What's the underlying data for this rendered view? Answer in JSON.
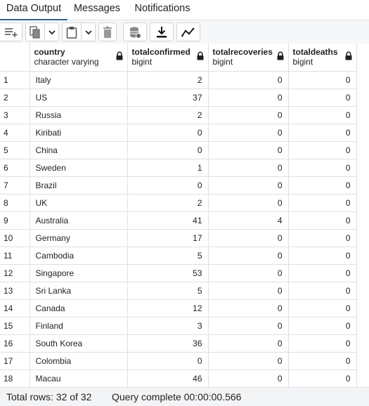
{
  "tabs": [
    {
      "label": "Data Output",
      "active": true
    },
    {
      "label": "Messages",
      "active": false
    },
    {
      "label": "Notifications",
      "active": false
    }
  ],
  "toolbar": {
    "buttons": [
      {
        "icon": "add-row-icon"
      },
      {
        "icon": "copy-icon"
      },
      {
        "icon": "chevron-down-icon"
      },
      {
        "icon": "paste-icon"
      },
      {
        "icon": "chevron-down-icon"
      },
      {
        "icon": "delete-icon"
      },
      {
        "icon": "save-data-icon"
      },
      {
        "icon": "download-icon"
      },
      {
        "icon": "graph-visualiser-icon"
      }
    ]
  },
  "grid": {
    "columns": [
      {
        "name": "country",
        "type": "character varying",
        "align": "left"
      },
      {
        "name": "totalconfirmed",
        "type": "bigint",
        "align": "right"
      },
      {
        "name": "totalrecoveries",
        "type": "bigint",
        "align": "right"
      },
      {
        "name": "totaldeaths",
        "type": "bigint",
        "align": "right"
      }
    ],
    "rows": [
      [
        "1",
        "Italy",
        "2",
        "0",
        "0"
      ],
      [
        "2",
        "US",
        "37",
        "0",
        "0"
      ],
      [
        "3",
        "Russia",
        "2",
        "0",
        "0"
      ],
      [
        "4",
        "Kiribati",
        "0",
        "0",
        "0"
      ],
      [
        "5",
        "China",
        "0",
        "0",
        "0"
      ],
      [
        "6",
        "Sweden",
        "1",
        "0",
        "0"
      ],
      [
        "7",
        "Brazil",
        "0",
        "0",
        "0"
      ],
      [
        "8",
        "UK",
        "2",
        "0",
        "0"
      ],
      [
        "9",
        "Australia",
        "41",
        "4",
        "0"
      ],
      [
        "10",
        "Germany",
        "17",
        "0",
        "0"
      ],
      [
        "11",
        "Cambodia",
        "5",
        "0",
        "0"
      ],
      [
        "12",
        "Singapore",
        "53",
        "0",
        "0"
      ],
      [
        "13",
        "Sri Lanka",
        "5",
        "0",
        "0"
      ],
      [
        "14",
        "Canada",
        "12",
        "0",
        "0"
      ],
      [
        "15",
        "Finland",
        "3",
        "0",
        "0"
      ],
      [
        "16",
        "South Korea",
        "36",
        "0",
        "0"
      ],
      [
        "17",
        "Colombia",
        "0",
        "0",
        "0"
      ],
      [
        "18",
        "Macau",
        "46",
        "0",
        "0"
      ]
    ]
  },
  "status": {
    "total_rows": "Total rows: 32 of 32",
    "query": "Query complete 00:00:00.566"
  },
  "colors": {
    "active_tab_underline": "#326690",
    "grid_border": "#dde0e6",
    "toolbar_bg": "#f6f7f8",
    "status_bg": "#f3f4f6"
  }
}
